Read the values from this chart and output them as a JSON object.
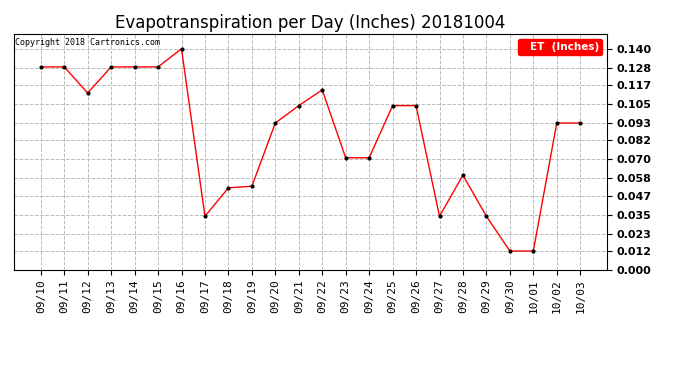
{
  "title": "Evapotranspiration per Day (Inches) 20181004",
  "copyright_text": "Copyright 2018 Cartronics.com",
  "legend_label": "ET  (Inches)",
  "dates": [
    "09/10",
    "09/11",
    "09/12",
    "09/13",
    "09/14",
    "09/15",
    "09/16",
    "09/17",
    "09/18",
    "09/19",
    "09/20",
    "09/21",
    "09/22",
    "09/23",
    "09/24",
    "09/25",
    "09/26",
    "09/27",
    "09/28",
    "09/29",
    "09/30",
    "10/01",
    "10/02",
    "10/03"
  ],
  "values": [
    0.1285,
    0.1285,
    0.112,
    0.1285,
    0.1285,
    0.1285,
    0.14,
    0.034,
    0.052,
    0.053,
    0.093,
    0.104,
    0.114,
    0.071,
    0.071,
    0.104,
    0.104,
    0.034,
    0.06,
    0.034,
    0.012,
    0.012,
    0.093,
    0.093
  ],
  "ylim": [
    0.0,
    0.1495
  ],
  "yticks": [
    0.0,
    0.012,
    0.023,
    0.035,
    0.047,
    0.058,
    0.07,
    0.082,
    0.093,
    0.105,
    0.117,
    0.128,
    0.14
  ],
  "line_color": "red",
  "marker_color": "black",
  "marker": ".",
  "background_color": "#ffffff",
  "grid_color": "#bbbbbb",
  "title_fontsize": 12,
  "tick_fontsize": 8,
  "legend_bg": "red",
  "legend_text_color": "white",
  "copyright_fontsize": 6
}
